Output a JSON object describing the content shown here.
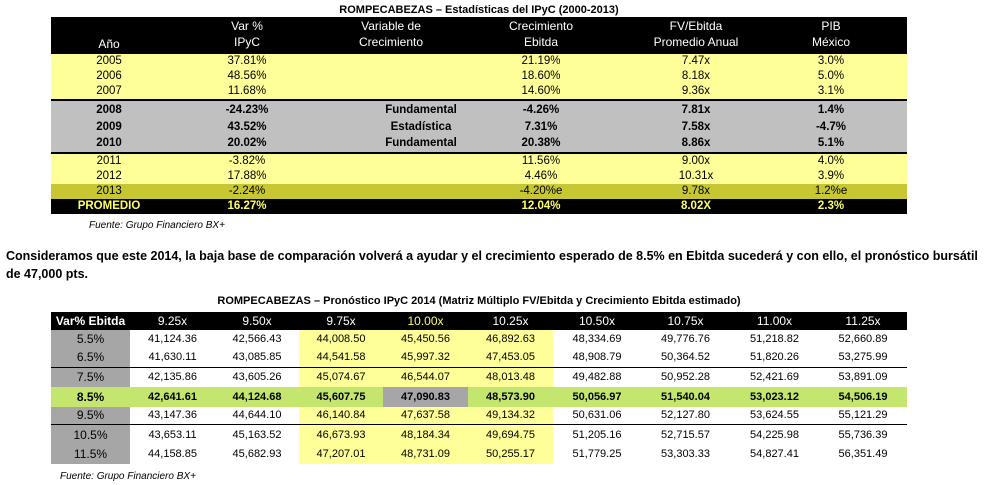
{
  "table1": {
    "title": "ROMPECABEZAS  – Estadísticas  del IPyC (2000-2013)",
    "headers": {
      "anio": "Año",
      "var_l1": "Var %",
      "var_l2": "IPyC",
      "variable_l1": "Variable de",
      "variable_l2": "Crecimiento",
      "crec_l1": "Crecimiento",
      "crec_l2": "Ebitda",
      "fv_l1": "FV/Ebitda",
      "fv_l2": "Promedio Anual",
      "pib_l1": "PIB",
      "pib_l2": "México"
    },
    "rows": [
      {
        "year": "2005",
        "var": "37.81%",
        "variable": "",
        "crec": "21.19%",
        "fv": "7.47x",
        "pib": "3.0%"
      },
      {
        "year": "2006",
        "var": "48.56%",
        "variable": "",
        "crec": "18.60%",
        "fv": "8.18x",
        "pib": "5.0%"
      },
      {
        "year": "2007",
        "var": "11.68%",
        "variable": "",
        "crec": "14.60%",
        "fv": "9.36x",
        "pib": "3.1%"
      },
      {
        "year": "2008",
        "var": "-24.23%",
        "variable": "Fundamental",
        "crec": "-4.26%",
        "fv": "7.81x",
        "pib": "1.4%"
      },
      {
        "year": "2009",
        "var": "43.52%",
        "variable": "Estadística",
        "crec": "7.31%",
        "fv": "7.58x",
        "pib": "-4.7%"
      },
      {
        "year": "2010",
        "var": "20.02%",
        "variable": "Fundamental",
        "crec": "20.38%",
        "fv": "8.86x",
        "pib": "5.1%"
      },
      {
        "year": "2011",
        "var": "-3.82%",
        "variable": "",
        "crec": "11.56%",
        "fv": "9.00x",
        "pib": "4.0%"
      },
      {
        "year": "2012",
        "var": "17.88%",
        "variable": "",
        "crec": "4.46%",
        "fv": "10.31x",
        "pib": "3.9%"
      },
      {
        "year": "2013",
        "var": "-2.24%",
        "variable": "",
        "crec": "-4.20%e",
        "fv": "9.78x",
        "pib": "1.2%e"
      }
    ],
    "promedio": {
      "label": "PROMEDIO",
      "var": "16.27%",
      "crec": "12.04%",
      "fv": "8.02X",
      "pib": "2.3%"
    },
    "source": "Fuente: Grupo Financiero BX+"
  },
  "paragraph": "Consideramos que este 2014, la baja base de comparación volverá a ayudar y el crecimiento esperado de 8.5% en Ebitda sucederá y con ello, el pronóstico bursátil de 47,000 pts.",
  "table2": {
    "title": "ROMPECABEZAS  – Pronóstico IPyC 2014 (Matriz Múltiplo FV/Ebitda y Crecimiento Ebitda estimado)",
    "corner": "Var% Ebitda",
    "multiples": [
      "9.25x",
      "9.50x",
      "9.75x",
      "10.00x",
      "10.25x",
      "10.50x",
      "10.75x",
      "11.00x",
      "11.25x"
    ],
    "rows": [
      {
        "label": "5.5%",
        "values": [
          "41,124.36",
          "42,566.43",
          "44,008.50",
          "45,450.56",
          "46,892.63",
          "48,334.69",
          "49,776.76",
          "51,218.82",
          "52,660.89"
        ]
      },
      {
        "label": "6.5%",
        "values": [
          "41,630.11",
          "43,085.85",
          "44,541.58",
          "45,997.32",
          "47,453.05",
          "48,908.79",
          "50,364.52",
          "51,820.26",
          "53,275.99"
        ]
      },
      {
        "label": "7.5%",
        "values": [
          "42,135.86",
          "43,605.26",
          "45,074.67",
          "46,544.07",
          "48,013.48",
          "49,482.88",
          "50,952.28",
          "52,421.69",
          "53,891.09"
        ]
      },
      {
        "label": "8.5%",
        "values": [
          "42,641.61",
          "44,124.68",
          "45,607.75",
          "47,090.83",
          "48,573.90",
          "50,056.97",
          "51,540.04",
          "53,023.12",
          "54,506.19"
        ]
      },
      {
        "label": "9.5%",
        "values": [
          "43,147.36",
          "44,644.10",
          "46,140.84",
          "47,637.58",
          "49,134.32",
          "50,631.06",
          "52,127.80",
          "53,624.55",
          "55,121.29"
        ]
      },
      {
        "label": "10.5%",
        "values": [
          "43,653.11",
          "45,163.52",
          "46,673.93",
          "48,184.34",
          "49,694.75",
          "51,205.16",
          "52,715.57",
          "54,225.98",
          "55,736.39"
        ]
      },
      {
        "label": "11.5%",
        "values": [
          "44,158.85",
          "45,682.93",
          "47,207.01",
          "48,731.09",
          "50,255.17",
          "51,779.25",
          "53,303.33",
          "54,827.41",
          "56,351.49"
        ]
      }
    ],
    "source": "Fuente:  Grupo Financiero  BX+",
    "colors": {
      "highlight_yellow": "#ffff99",
      "highlight_green": "#c4e66e",
      "label_grey": "#a6a6a6",
      "header_black": "#000000"
    }
  }
}
